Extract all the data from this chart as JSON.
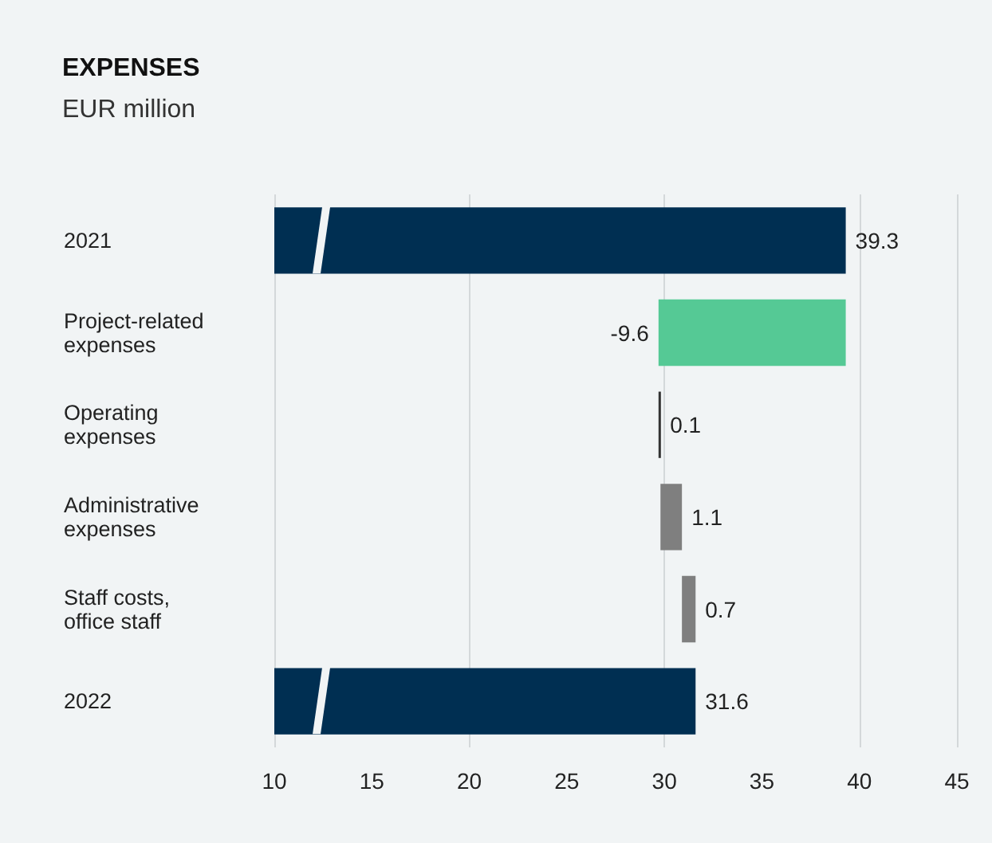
{
  "chart_data": {
    "type": "bar",
    "orientation": "horizontal",
    "title": "EXPENSES",
    "subtitle": "EUR million",
    "categories": [
      "2021",
      "Project-related expenses",
      "Operating expenses",
      "Administrative expenses",
      "Staff costs, office staff",
      "2022"
    ],
    "values": [
      39.3,
      -9.6,
      0.1,
      1.1,
      0.7,
      31.6
    ],
    "base": [
      null,
      39.3,
      29.7,
      29.8,
      30.9,
      null
    ],
    "colors": [
      "#002f52",
      "#55c995",
      "#333333",
      "#7f7f7f",
      "#7f7f7f",
      "#002f52"
    ],
    "xlim": [
      10,
      45
    ],
    "xticks": [
      10,
      15,
      20,
      25,
      30,
      35,
      40,
      45
    ],
    "grid": "x",
    "data_labels": true
  }
}
